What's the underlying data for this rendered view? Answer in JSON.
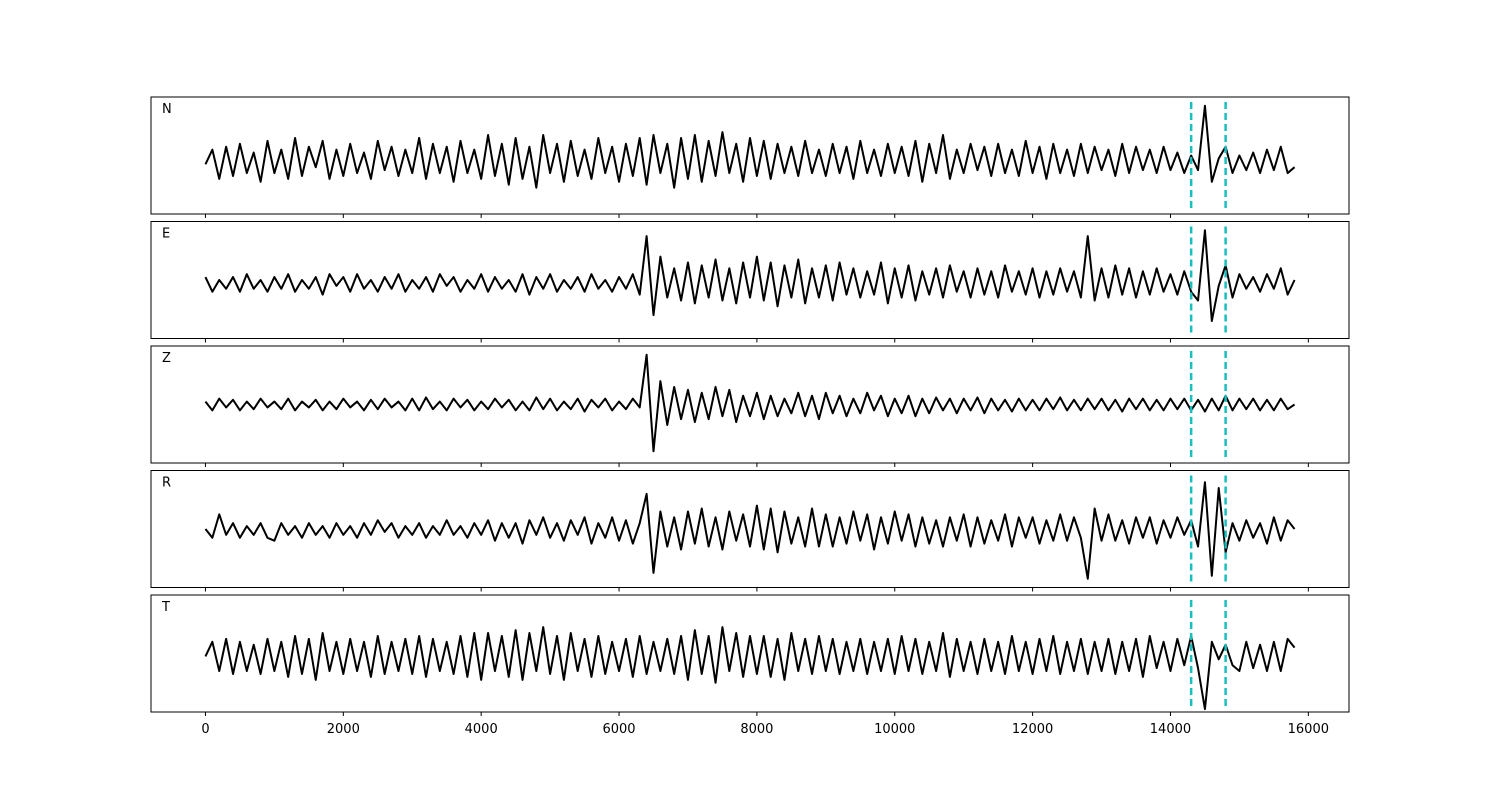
{
  "chart_data": {
    "type": "line",
    "x": [
      0,
      100,
      200,
      300,
      400,
      500,
      600,
      700,
      800,
      900,
      1000,
      1100,
      1200,
      1300,
      1400,
      1500,
      1600,
      1700,
      1800,
      1900,
      2000,
      2100,
      2200,
      2300,
      2400,
      2500,
      2600,
      2700,
      2800,
      2900,
      3000,
      3100,
      3200,
      3300,
      3400,
      3500,
      3600,
      3700,
      3800,
      3900,
      4000,
      4100,
      4200,
      4300,
      4400,
      4500,
      4600,
      4700,
      4800,
      4900,
      5000,
      5100,
      5200,
      5300,
      5400,
      5500,
      5600,
      5700,
      5800,
      5900,
      6000,
      6100,
      6200,
      6300,
      6400,
      6500,
      6600,
      6700,
      6800,
      6900,
      7000,
      7100,
      7200,
      7300,
      7400,
      7500,
      7600,
      7700,
      7800,
      7900,
      8000,
      8100,
      8200,
      8300,
      8400,
      8500,
      8600,
      8700,
      8800,
      8900,
      9000,
      9100,
      9200,
      9300,
      9400,
      9500,
      9600,
      9700,
      9800,
      9900,
      10000,
      10100,
      10200,
      10300,
      10400,
      10500,
      10600,
      10700,
      10800,
      10900,
      11000,
      11100,
      11200,
      11300,
      11400,
      11500,
      11600,
      11700,
      11800,
      11900,
      12000,
      12100,
      12200,
      12300,
      12400,
      12500,
      12600,
      12700,
      12800,
      12900,
      13000,
      13100,
      13200,
      13300,
      13400,
      13500,
      13600,
      13700,
      13800,
      13900,
      14000,
      14100,
      14200,
      14300,
      14400,
      14500,
      14600,
      14700,
      14800,
      14900,
      15000,
      15100,
      15200,
      15300,
      15400,
      15500,
      15600,
      15700,
      15800
    ],
    "series": [
      {
        "name": "N",
        "color": "#000000",
        "values": [
          -0.15,
          0.1,
          -0.4,
          0.15,
          -0.35,
          0.2,
          -0.3,
          0.05,
          -0.45,
          0.25,
          -0.3,
          0.1,
          -0.4,
          0.3,
          -0.35,
          0.15,
          -0.2,
          0.25,
          -0.4,
          0.1,
          -0.35,
          0.2,
          -0.3,
          0.05,
          -0.4,
          0.25,
          -0.25,
          0.15,
          -0.35,
          0.1,
          -0.3,
          0.3,
          -0.4,
          0.2,
          -0.3,
          0.15,
          -0.45,
          0.25,
          -0.3,
          0.1,
          -0.4,
          0.35,
          -0.35,
          0.2,
          -0.5,
          0.3,
          -0.4,
          0.15,
          -0.55,
          0.35,
          -0.3,
          0.2,
          -0.45,
          0.25,
          -0.35,
          0.1,
          -0.4,
          0.3,
          -0.3,
          0.15,
          -0.45,
          0.2,
          -0.35,
          0.3,
          -0.5,
          0.35,
          -0.3,
          0.2,
          -0.55,
          0.3,
          -0.4,
          0.35,
          -0.45,
          0.25,
          -0.35,
          0.4,
          -0.3,
          0.2,
          -0.45,
          0.3,
          -0.35,
          0.25,
          -0.4,
          0.2,
          -0.3,
          0.15,
          -0.35,
          0.25,
          -0.3,
          0.1,
          -0.35,
          0.2,
          -0.3,
          0.15,
          -0.4,
          0.25,
          -0.3,
          0.1,
          -0.35,
          0.2,
          -0.3,
          0.15,
          -0.35,
          0.25,
          -0.45,
          0.2,
          -0.3,
          0.35,
          -0.4,
          0.1,
          -0.3,
          0.2,
          -0.25,
          0.15,
          -0.35,
          0.2,
          -0.3,
          0.1,
          -0.35,
          0.25,
          -0.3,
          0.15,
          -0.4,
          0.2,
          -0.3,
          0.1,
          -0.35,
          0.2,
          -0.3,
          0.15,
          -0.25,
          0.1,
          -0.35,
          0.2,
          -0.3,
          0.15,
          -0.25,
          0.1,
          -0.3,
          0.15,
          -0.25,
          0.05,
          -0.3,
          0.0,
          -0.25,
          0.85,
          -0.45,
          -0.05,
          0.15,
          -0.3,
          0.0,
          -0.25,
          0.05,
          -0.3,
          0.1,
          -0.25,
          0.15,
          -0.3,
          -0.2
        ]
      },
      {
        "name": "E",
        "color": "#000000",
        "values": [
          0.05,
          -0.2,
          0.0,
          -0.15,
          0.05,
          -0.2,
          0.1,
          -0.15,
          0.0,
          -0.2,
          0.05,
          -0.15,
          0.1,
          -0.2,
          0.0,
          -0.15,
          0.05,
          -0.25,
          0.1,
          -0.1,
          0.05,
          -0.2,
          0.1,
          -0.15,
          0.0,
          -0.2,
          0.05,
          -0.15,
          0.1,
          -0.2,
          0.0,
          -0.15,
          0.05,
          -0.2,
          0.1,
          -0.1,
          0.05,
          -0.2,
          0.0,
          -0.15,
          0.1,
          -0.2,
          0.05,
          -0.15,
          0.0,
          -0.2,
          0.1,
          -0.25,
          0.05,
          -0.15,
          0.1,
          -0.2,
          0.0,
          -0.15,
          0.05,
          -0.2,
          0.1,
          -0.15,
          0.0,
          -0.2,
          0.05,
          -0.15,
          0.1,
          -0.25,
          0.75,
          -0.6,
          0.4,
          -0.3,
          0.2,
          -0.35,
          0.3,
          -0.4,
          0.25,
          -0.3,
          0.35,
          -0.35,
          0.2,
          -0.4,
          0.3,
          -0.3,
          0.4,
          -0.35,
          0.3,
          -0.45,
          0.25,
          -0.3,
          0.35,
          -0.4,
          0.2,
          -0.3,
          0.25,
          -0.35,
          0.3,
          -0.25,
          0.2,
          -0.3,
          0.15,
          -0.25,
          0.3,
          -0.4,
          0.2,
          -0.3,
          0.25,
          -0.35,
          0.15,
          -0.25,
          0.2,
          -0.3,
          0.25,
          -0.2,
          0.15,
          -0.3,
          0.2,
          -0.25,
          0.15,
          -0.3,
          0.25,
          -0.2,
          0.15,
          -0.25,
          0.2,
          -0.3,
          0.15,
          -0.25,
          0.2,
          -0.2,
          0.15,
          -0.3,
          0.75,
          -0.35,
          0.2,
          -0.3,
          0.25,
          -0.25,
          0.2,
          -0.3,
          0.15,
          -0.25,
          0.2,
          -0.2,
          0.1,
          -0.25,
          0.15,
          -0.2,
          -0.35,
          0.85,
          -0.7,
          -0.1,
          0.25,
          -0.3,
          0.1,
          -0.15,
          0.05,
          -0.2,
          0.1,
          -0.15,
          0.2,
          -0.25,
          0.0
        ]
      },
      {
        "name": "Z",
        "color": "#000000",
        "values": [
          0.05,
          -0.1,
          0.1,
          -0.05,
          0.08,
          -0.1,
          0.05,
          -0.08,
          0.1,
          -0.05,
          0.05,
          -0.08,
          0.1,
          -0.1,
          0.05,
          -0.05,
          0.08,
          -0.1,
          0.05,
          -0.08,
          0.1,
          -0.05,
          0.05,
          -0.1,
          0.08,
          -0.08,
          0.1,
          -0.05,
          0.05,
          -0.1,
          0.1,
          -0.1,
          0.12,
          -0.08,
          0.05,
          -0.1,
          0.1,
          -0.05,
          0.08,
          -0.1,
          0.05,
          -0.08,
          0.1,
          -0.05,
          0.08,
          -0.1,
          0.05,
          -0.1,
          0.12,
          -0.08,
          0.1,
          -0.1,
          0.05,
          -0.08,
          0.1,
          -0.12,
          0.08,
          -0.05,
          0.1,
          -0.1,
          0.05,
          -0.08,
          0.1,
          -0.05,
          0.85,
          -0.8,
          0.4,
          -0.35,
          0.3,
          -0.25,
          0.25,
          -0.3,
          0.2,
          -0.25,
          0.3,
          -0.2,
          0.25,
          -0.3,
          0.15,
          -0.2,
          0.2,
          -0.25,
          0.15,
          -0.2,
          0.1,
          -0.15,
          0.2,
          -0.2,
          0.15,
          -0.25,
          0.2,
          -0.15,
          0.15,
          -0.2,
          0.1,
          -0.15,
          0.2,
          -0.1,
          0.15,
          -0.2,
          0.1,
          -0.15,
          0.15,
          -0.2,
          0.1,
          -0.15,
          0.12,
          -0.1,
          0.1,
          -0.15,
          0.1,
          -0.1,
          0.12,
          -0.15,
          0.1,
          -0.1,
          0.08,
          -0.12,
          0.1,
          -0.1,
          0.08,
          -0.1,
          0.1,
          -0.08,
          0.12,
          -0.1,
          0.08,
          -0.1,
          0.1,
          -0.08,
          0.1,
          -0.1,
          0.08,
          -0.12,
          0.1,
          -0.08,
          0.1,
          -0.1,
          0.08,
          -0.1,
          0.1,
          -0.08,
          0.1,
          -0.1,
          0.08,
          -0.12,
          0.1,
          -0.1,
          0.15,
          -0.1,
          0.1,
          -0.08,
          0.1,
          -0.1,
          0.08,
          -0.1,
          0.1,
          -0.08,
          0.0
        ]
      },
      {
        "name": "R",
        "color": "#000000",
        "values": [
          0.0,
          -0.15,
          0.25,
          -0.1,
          0.1,
          -0.15,
          0.05,
          -0.1,
          0.1,
          -0.15,
          -0.2,
          0.1,
          -0.1,
          0.05,
          -0.15,
          0.1,
          -0.1,
          0.05,
          -0.15,
          0.1,
          -0.1,
          0.05,
          -0.15,
          0.1,
          -0.1,
          0.15,
          -0.05,
          0.1,
          -0.15,
          0.05,
          -0.1,
          0.1,
          -0.15,
          0.05,
          -0.1,
          0.15,
          -0.1,
          0.05,
          -0.15,
          0.1,
          -0.1,
          0.15,
          -0.2,
          0.1,
          -0.15,
          0.1,
          -0.25,
          0.15,
          -0.1,
          0.2,
          -0.15,
          0.1,
          -0.2,
          0.15,
          -0.1,
          0.2,
          -0.25,
          0.1,
          -0.15,
          0.2,
          -0.2,
          0.15,
          -0.25,
          0.1,
          0.6,
          -0.75,
          0.3,
          -0.3,
          0.2,
          -0.35,
          0.3,
          -0.25,
          0.35,
          -0.3,
          0.2,
          -0.35,
          0.3,
          -0.2,
          0.25,
          -0.3,
          0.4,
          -0.35,
          0.35,
          -0.4,
          0.3,
          -0.25,
          0.2,
          -0.3,
          0.35,
          -0.3,
          0.25,
          -0.3,
          0.2,
          -0.25,
          0.3,
          -0.2,
          0.25,
          -0.35,
          0.2,
          -0.25,
          0.3,
          -0.2,
          0.25,
          -0.3,
          0.2,
          -0.25,
          0.15,
          -0.3,
          0.2,
          -0.2,
          0.25,
          -0.3,
          0.2,
          -0.25,
          0.15,
          -0.2,
          0.25,
          -0.3,
          0.2,
          -0.15,
          0.2,
          -0.25,
          0.15,
          -0.2,
          0.25,
          -0.2,
          0.2,
          -0.15,
          -0.85,
          0.35,
          -0.2,
          0.25,
          -0.2,
          0.15,
          -0.25,
          0.2,
          -0.15,
          0.2,
          -0.25,
          0.15,
          -0.15,
          0.2,
          -0.1,
          0.15,
          -0.3,
          0.8,
          -0.8,
          0.7,
          -0.4,
          0.1,
          -0.2,
          0.15,
          -0.15,
          0.1,
          -0.25,
          0.2,
          -0.2,
          0.15,
          0.0
        ]
      },
      {
        "name": "T",
        "color": "#000000",
        "values": [
          -0.05,
          0.2,
          -0.3,
          0.25,
          -0.35,
          0.2,
          -0.3,
          0.15,
          -0.35,
          0.25,
          -0.3,
          0.2,
          -0.4,
          0.3,
          -0.35,
          0.25,
          -0.45,
          0.35,
          -0.3,
          0.2,
          -0.35,
          0.25,
          -0.3,
          0.2,
          -0.4,
          0.3,
          -0.35,
          0.2,
          -0.3,
          0.25,
          -0.35,
          0.3,
          -0.4,
          0.25,
          -0.3,
          0.2,
          -0.35,
          0.3,
          -0.4,
          0.35,
          -0.45,
          0.35,
          -0.3,
          0.3,
          -0.4,
          0.4,
          -0.45,
          0.35,
          -0.3,
          0.45,
          -0.35,
          0.3,
          -0.45,
          0.35,
          -0.3,
          0.25,
          -0.4,
          0.3,
          -0.35,
          0.2,
          -0.3,
          0.25,
          -0.4,
          0.3,
          -0.35,
          0.2,
          -0.3,
          0.25,
          -0.35,
          0.3,
          -0.45,
          0.4,
          -0.35,
          0.3,
          -0.5,
          0.45,
          -0.3,
          0.35,
          -0.4,
          0.3,
          -0.35,
          0.3,
          -0.4,
          0.25,
          -0.45,
          0.35,
          -0.3,
          0.25,
          -0.35,
          0.3,
          -0.3,
          0.25,
          -0.35,
          0.2,
          -0.3,
          0.25,
          -0.35,
          0.2,
          -0.3,
          0.25,
          -0.35,
          0.3,
          -0.3,
          0.25,
          -0.35,
          0.2,
          -0.3,
          0.35,
          -0.4,
          0.25,
          -0.3,
          0.2,
          -0.35,
          0.25,
          -0.3,
          0.2,
          -0.35,
          0.3,
          -0.3,
          0.2,
          -0.35,
          0.25,
          -0.3,
          0.3,
          -0.35,
          0.2,
          -0.3,
          0.25,
          -0.35,
          0.2,
          -0.3,
          0.25,
          -0.35,
          0.2,
          -0.3,
          0.25,
          -0.4,
          0.3,
          -0.25,
          0.2,
          -0.3,
          0.25,
          -0.2,
          0.3,
          -0.25,
          -0.95,
          0.2,
          -0.1,
          0.15,
          -0.2,
          -0.3,
          0.2,
          -0.25,
          0.15,
          -0.3,
          0.2,
          -0.3,
          0.25,
          0.1
        ]
      }
    ],
    "xlim": [
      -790,
      16590
    ],
    "xticks": [
      0,
      2000,
      4000,
      6000,
      8000,
      10000,
      12000,
      14000,
      16000
    ],
    "ylim": [
      -1,
      1
    ],
    "vlines": [
      14300,
      14800
    ],
    "vline_color": "#17bfbf"
  }
}
